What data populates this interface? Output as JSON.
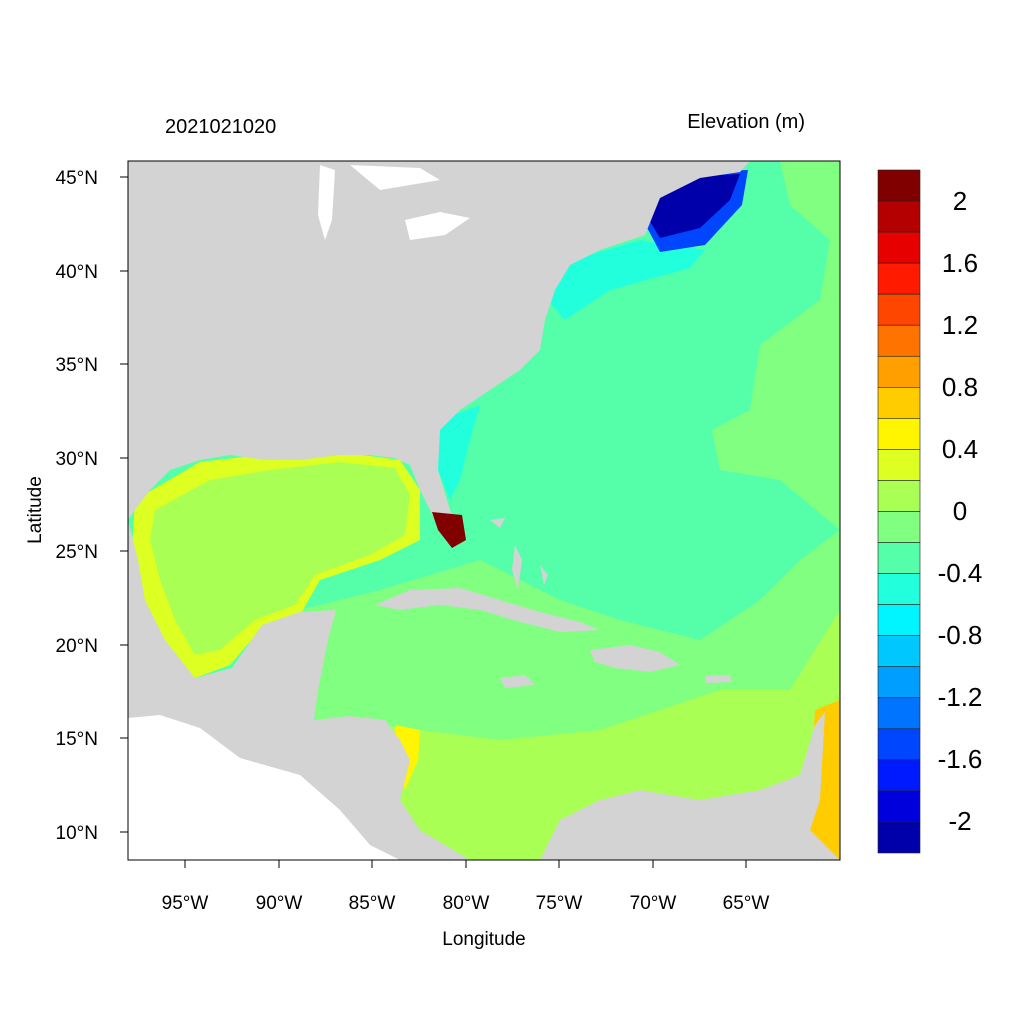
{
  "title_left": "2021021020",
  "title_right": "Elevation (m)",
  "x_axis_label": "Longitude",
  "y_axis_label": "Latitude",
  "x_ticks": [
    "95°W",
    "90°W",
    "85°W",
    "80°W",
    "75°W",
    "70°W",
    "65°W"
  ],
  "y_ticks": [
    "45°N",
    "40°N",
    "35°N",
    "30°N",
    "25°N",
    "20°N",
    "15°N",
    "10°N"
  ],
  "colorbar": {
    "labels": [
      "2",
      "1.6",
      "1.2",
      "0.8",
      "0.4",
      "0",
      "-0.4",
      "-0.8",
      "-1.2",
      "-1.6",
      "-2"
    ],
    "colors": [
      "#800000",
      "#B40000",
      "#E60000",
      "#FF1A00",
      "#FF4600",
      "#FF7300",
      "#FF9F00",
      "#FFCC00",
      "#FFF500",
      "#DDFF22",
      "#AAFF55",
      "#80FF80",
      "#55FFAA",
      "#22FFDD",
      "#00F5FF",
      "#00C8FF",
      "#009FFF",
      "#0073FF",
      "#0046FF",
      "#001AFF",
      "#0000DD",
      "#0000AA"
    ]
  },
  "colors": {
    "land": "#D3D3D3",
    "no_data": "#FFFFFF"
  }
}
